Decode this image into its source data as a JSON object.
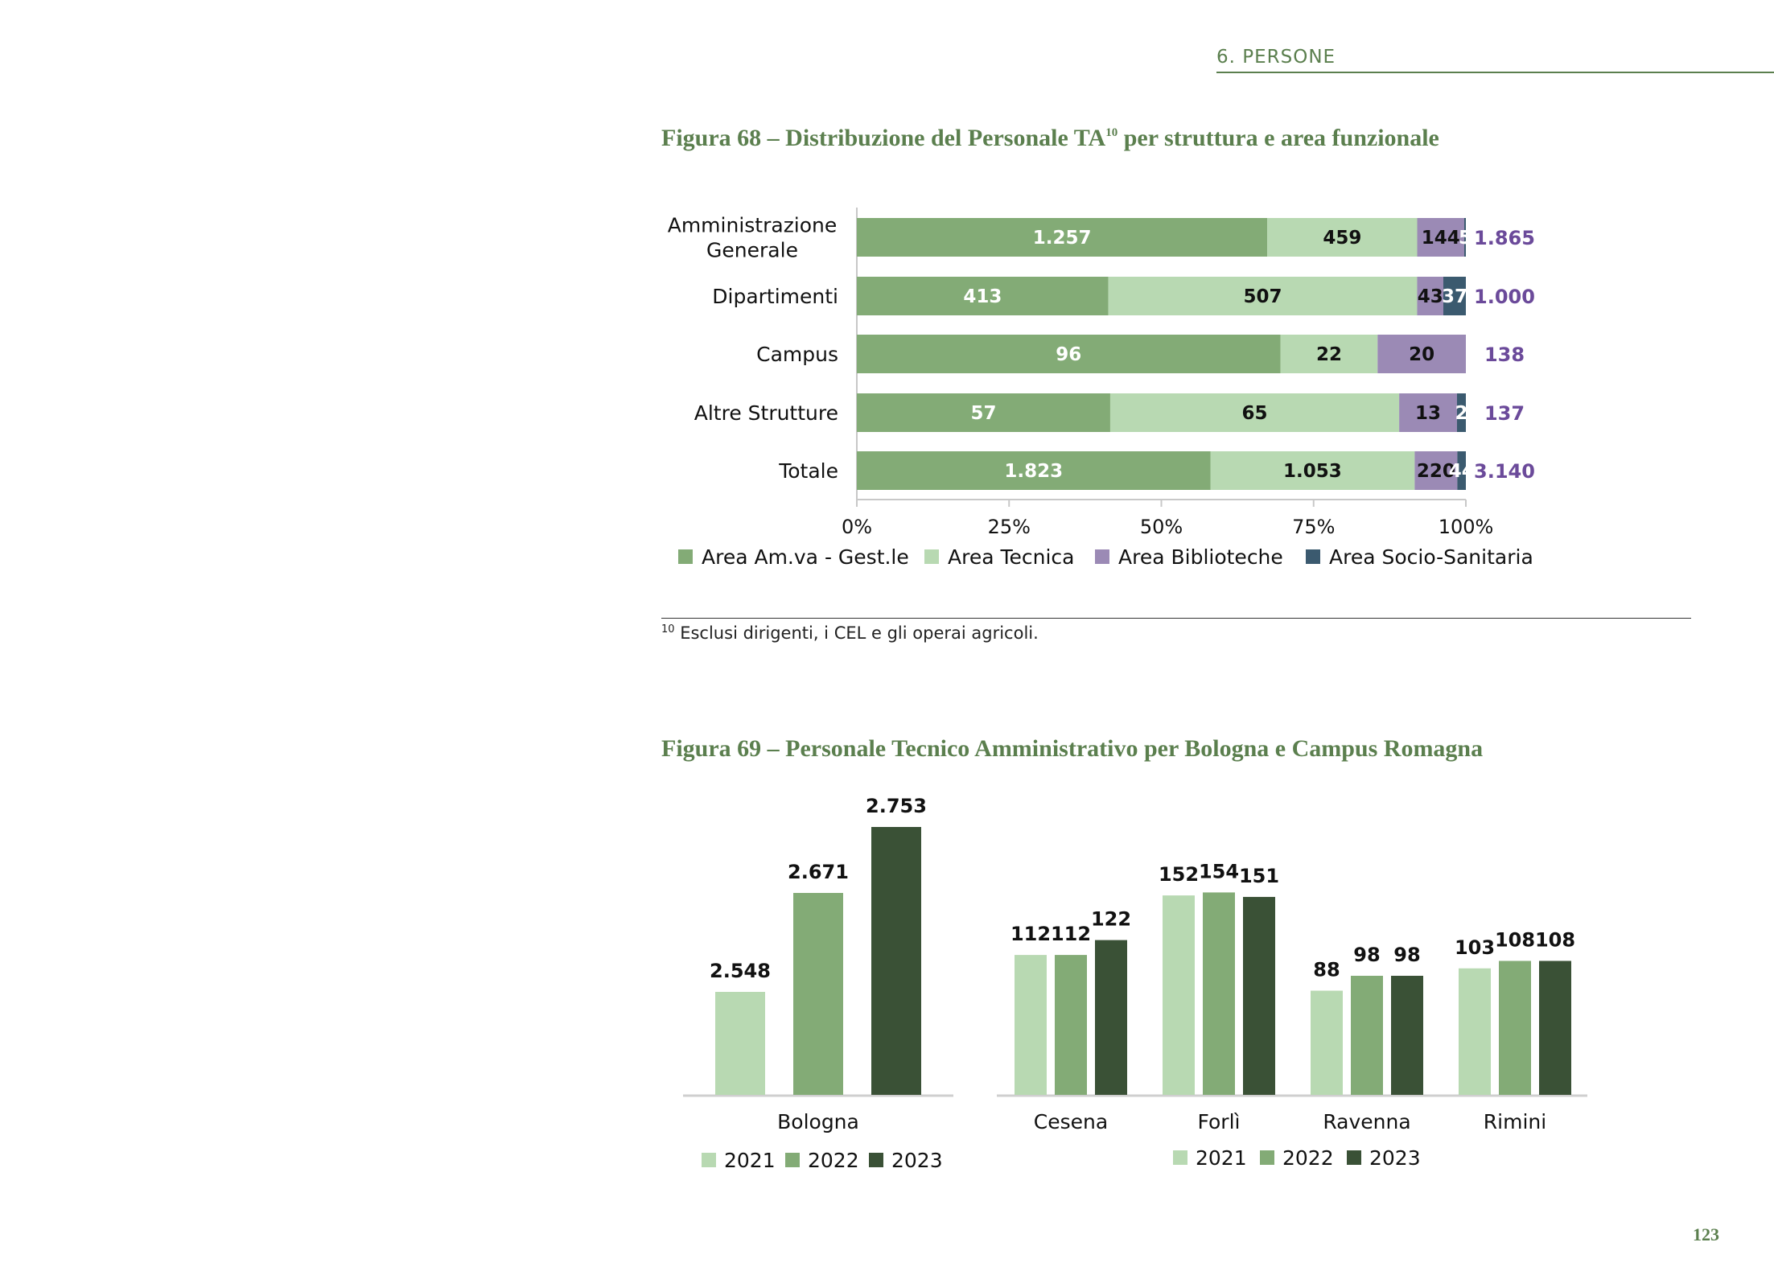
{
  "header": {
    "section": "6. PERSONE"
  },
  "figure68": {
    "title": "Figura 68 – Distribuzione del Personale TA",
    "title_sup": "10",
    "title_suffix": "per struttura e area funzionale"
  },
  "footnote": {
    "marker": "10",
    "text": " Esclusi dirigenti, i CEL e gli operai agricoli."
  },
  "figure69": {
    "title": "Figura 69 – Personale Tecnico Amministrativo per Bologna e Campus Romagna"
  },
  "page_number": "123",
  "chart_data": [
    {
      "type": "bar",
      "orientation": "horizontal",
      "stacked": "percent",
      "categories": [
        [
          "Amministrazione",
          "Generale"
        ],
        [
          "Dipartimenti"
        ],
        [
          "Campus"
        ],
        [
          "Altre Strutture"
        ],
        [
          "Totale"
        ]
      ],
      "series": [
        {
          "name": "Area Am.va - Gest.le",
          "values": [
            1257,
            413,
            96,
            57,
            1823
          ],
          "labels": [
            "1.257",
            "413",
            "96",
            "57",
            "1.823"
          ],
          "color": "#83ab76",
          "label_color": "#ffffff"
        },
        {
          "name": "Area Tecnica",
          "values": [
            459,
            507,
            22,
            65,
            1053
          ],
          "labels": [
            "459",
            "507",
            "22",
            "65",
            "1.053"
          ],
          "color": "#b8d9b2",
          "label_color": "#111111"
        },
        {
          "name": "Area Biblioteche",
          "values": [
            144,
            43,
            20,
            13,
            220
          ],
          "labels": [
            "144",
            "43",
            "20",
            "13",
            "220"
          ],
          "color": "#9b8ab5",
          "label_color": "#111111"
        },
        {
          "name": "Area Socio-Sanitaria",
          "values": [
            5,
            37,
            0,
            2,
            44
          ],
          "labels": [
            "5",
            "37",
            "",
            "2",
            "44"
          ],
          "color": "#3b5a6f",
          "label_color": "#ffffff"
        }
      ],
      "totals": [
        "1.865",
        "1.000",
        "138",
        "137",
        "3.140"
      ],
      "totals_color": "#6b4a9a",
      "xticks": [
        "0%",
        "25%",
        "50%",
        "75%",
        "100%"
      ],
      "xlim": [
        0,
        100
      ],
      "legend_position": "bottom"
    },
    {
      "type": "bar",
      "categories": [
        "Bologna"
      ],
      "series": [
        {
          "name": "2021",
          "values": [
            2548
          ],
          "labels": [
            "2.548"
          ],
          "color": "#b8d9b2"
        },
        {
          "name": "2022",
          "values": [
            2671
          ],
          "labels": [
            "2.671"
          ],
          "color": "#83ab76"
        },
        {
          "name": "2023",
          "values": [
            2753
          ],
          "labels": [
            "2.753"
          ],
          "color": "#3a5136"
        }
      ],
      "legend_position": "bottom"
    },
    {
      "type": "bar",
      "categories": [
        "Cesena",
        "Forlì",
        "Ravenna",
        "Rimini"
      ],
      "series": [
        {
          "name": "2021",
          "values": [
            112,
            152,
            88,
            103
          ],
          "labels": [
            "112",
            "152",
            "88",
            "103"
          ],
          "color": "#b8d9b2"
        },
        {
          "name": "2022",
          "values": [
            112,
            154,
            98,
            108
          ],
          "labels": [
            "112",
            "154",
            "98",
            "108"
          ],
          "color": "#83ab76"
        },
        {
          "name": "2023",
          "values": [
            122,
            151,
            98,
            108
          ],
          "labels": [
            "122",
            "151",
            "98",
            "108"
          ],
          "color": "#3a5136"
        }
      ],
      "legend_position": "bottom"
    }
  ]
}
